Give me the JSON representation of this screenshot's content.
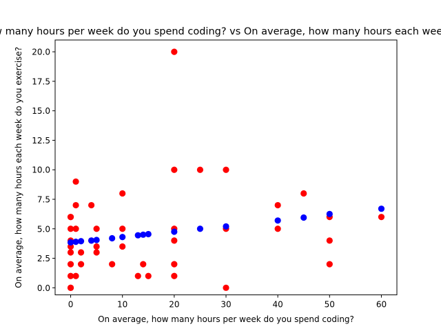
{
  "chart_data": {
    "type": "scatter",
    "title": "On average, how many hours per week do you spend coding? vs On average, how many hours each week do you exercise?",
    "xlabel": "On average, how many hours per week do you spend coding?",
    "ylabel": "On average, how many hours each week do you exercise?",
    "xlim": [
      -3,
      63
    ],
    "ylim": [
      -0.6,
      21
    ],
    "xticks": [
      0,
      10,
      20,
      30,
      40,
      50,
      60
    ],
    "xtick_labels": [
      "0",
      "10",
      "20",
      "30",
      "40",
      "50",
      "60"
    ],
    "yticks": [
      0,
      2.5,
      5,
      7.5,
      10,
      12.5,
      15,
      17.5,
      20
    ],
    "ytick_labels": [
      "0.0",
      "2.5",
      "5.0",
      "7.5",
      "10.0",
      "12.5",
      "15.0",
      "17.5",
      "20.0"
    ],
    "grid": false,
    "series": [
      {
        "color": "#ff0000",
        "x": [
          0,
          0,
          0,
          0,
          0,
          0,
          0,
          0,
          0,
          0,
          1,
          1,
          1,
          1,
          2,
          2,
          4,
          4,
          5,
          5,
          5,
          8,
          10,
          10,
          10,
          13,
          14,
          15,
          20,
          20,
          20,
          20,
          20,
          20,
          25,
          30,
          30,
          30,
          40,
          40,
          45,
          50,
          50,
          50,
          60
        ],
        "y": [
          0,
          1,
          2,
          3,
          3.5,
          4,
          5,
          6,
          6,
          0,
          9,
          7,
          5,
          1,
          3,
          2,
          7,
          4,
          5,
          3.5,
          3,
          2,
          8,
          5,
          3.5,
          1,
          2,
          1,
          20,
          10,
          5,
          4,
          2,
          1,
          10,
          10,
          5,
          0,
          7,
          5,
          8,
          6,
          4,
          2,
          6
        ]
      },
      {
        "color": "#0000ff",
        "x": [
          0,
          1,
          2,
          4,
          5,
          8,
          10,
          13,
          14,
          15,
          20,
          25,
          30,
          40,
          45,
          50,
          60
        ],
        "y": [
          3.85,
          3.9,
          3.95,
          4.0,
          4.05,
          4.2,
          4.3,
          4.45,
          4.5,
          4.55,
          4.75,
          5.0,
          5.2,
          5.7,
          5.95,
          6.25,
          6.7
        ]
      }
    ]
  }
}
